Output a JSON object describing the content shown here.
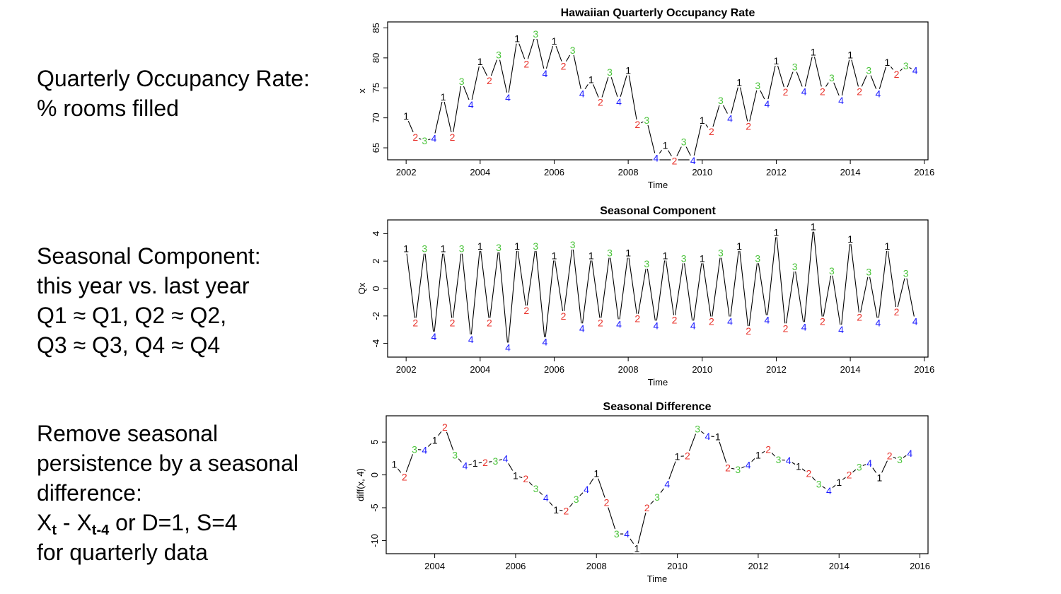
{
  "text_blocks": {
    "occupancy": {
      "line1": "Quarterly Occupancy Rate:",
      "line2": "% rooms filled"
    },
    "seasonal": {
      "line1": "Seasonal Component:",
      "line2": "this year vs. last year",
      "line3": "Q1 ≈ Q1, Q2 ≈ Q2,",
      "line4": "Q3 ≈ Q3, Q4 ≈ Q4"
    },
    "difference": {
      "line1": "Remove seasonal",
      "line2": "persistence by a seasonal",
      "line3": "difference:",
      "f_x1": "X",
      "f_sub1": "t",
      "f_mid": " - X",
      "f_sub2": "t-4",
      "f_rest": "  or D=1, S=4",
      "line5": "for quarterly data"
    }
  },
  "colors": {
    "q1": "#000000",
    "q2": "#e8312a",
    "q3": "#4cc43c",
    "q4": "#1a1aff"
  },
  "chart_data": [
    {
      "type": "line",
      "title": "Hawaiian Quarterly Occupancy Rate",
      "xlabel": "Time",
      "ylabel": "x",
      "xlim": [
        2001.5,
        2016.1
      ],
      "ylim": [
        63,
        86
      ],
      "xticks": [
        2002,
        2004,
        2006,
        2008,
        2010,
        2012,
        2014,
        2016
      ],
      "yticks": [
        65,
        70,
        75,
        80,
        85
      ],
      "start": 2002,
      "frequency": 4,
      "point_labels": "quarter number",
      "values": [
        70.3,
        66.8,
        66.2,
        66.6,
        73.5,
        66.8,
        76.1,
        72.2,
        79.4,
        76.2,
        80.5,
        73.4,
        83.2,
        79.0,
        84.0,
        77.4,
        82.8,
        78.6,
        81.3,
        74.0,
        76.4,
        72.6,
        77.6,
        72.7,
        77.9,
        68.9,
        69.6,
        63.3,
        65.4,
        62.8,
        66.0,
        62.9,
        69.6,
        67.7,
        72.9,
        69.9,
        75.9,
        68.6,
        75.4,
        72.3,
        79.5,
        74.3,
        78.5,
        74.4,
        81.0,
        74.4,
        76.7,
        72.9,
        80.5,
        74.4,
        77.9,
        74.0,
        79.3,
        77.3,
        78.7,
        77.9
      ]
    },
    {
      "type": "line",
      "title": "Seasonal Component",
      "xlabel": "Time",
      "ylabel": "Qx",
      "xlim": [
        2001.5,
        2016.1
      ],
      "ylim": [
        -5,
        5
      ],
      "xticks": [
        2002,
        2004,
        2006,
        2008,
        2010,
        2012,
        2014,
        2016
      ],
      "yticks": [
        -4,
        -2,
        0,
        2,
        4
      ],
      "start": 2002,
      "frequency": 4,
      "point_labels": "quarter number",
      "values": [
        2.9,
        -2.5,
        2.9,
        -3.5,
        2.9,
        -2.5,
        2.9,
        -3.7,
        3.1,
        -2.5,
        3.0,
        -4.3,
        3.1,
        -1.6,
        3.1,
        -3.9,
        2.4,
        -2.0,
        3.2,
        -2.9,
        2.4,
        -2.5,
        2.6,
        -2.6,
        2.6,
        -2.2,
        1.8,
        -2.7,
        2.4,
        -2.3,
        2.2,
        -2.7,
        2.2,
        -2.4,
        2.6,
        -2.4,
        3.1,
        -3.1,
        2.2,
        -2.3,
        4.1,
        -2.9,
        1.6,
        -2.8,
        4.5,
        -2.4,
        1.3,
        -3.0,
        3.6,
        -2.1,
        1.2,
        -2.5,
        3.1,
        -1.7,
        1.1,
        -2.4
      ]
    },
    {
      "type": "line",
      "title": "Seasonal Difference",
      "xlabel": "Time",
      "ylabel": "diff(x, 4)",
      "xlim": [
        2002.8,
        2016.2
      ],
      "ylim": [
        -12,
        9
      ],
      "xticks": [
        2004,
        2006,
        2008,
        2010,
        2012,
        2014,
        2016
      ],
      "yticks": [
        -10,
        -5,
        0,
        5
      ],
      "start": 2003,
      "frequency": 4,
      "point_labels": "quarter number",
      "values": [
        1.6,
        -0.3,
        3.9,
        3.8,
        5.3,
        7.3,
        3.0,
        1.4,
        1.8,
        1.9,
        2.1,
        2.5,
        -0.1,
        -0.6,
        -2.1,
        -3.5,
        -5.3,
        -5.5,
        -3.7,
        -2.2,
        0.2,
        -4.2,
        -9.0,
        -9.0,
        -11.2,
        -5.0,
        -3.4,
        -1.4,
        2.8,
        2.9,
        7.0,
        5.9,
        5.8,
        1.1,
        0.8,
        1.5,
        3.0,
        3.9,
        2.3,
        2.2,
        1.3,
        0.2,
        -1.4,
        -2.4,
        -1.1,
        0.0,
        1.2,
        1.8,
        -0.4,
        2.9,
        2.3,
        3.3
      ]
    }
  ]
}
